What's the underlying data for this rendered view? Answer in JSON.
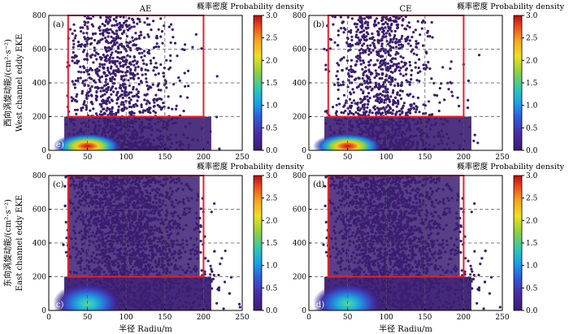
{
  "figure": {
    "ylabel_top": "西向涡旋动能/(cm²·s⁻²)",
    "ylabel_top_en": "West channel eddy EKE",
    "ylabel_bottom": "东向涡旋动能/(cm²·s⁻²)",
    "ylabel_bottom_en": "East channel eddy EKE",
    "xlabel": "半径 Radiu/m",
    "colorbar_title": "概率密度 Probability density",
    "colorbar_ticks": [
      "0.0",
      "0.5",
      "1.0",
      "1.5",
      "2.0",
      "2.5",
      "3.0"
    ],
    "colors": {
      "background": "#3b1d72",
      "point": "#3a1c6e",
      "box": "#e8202a",
      "grid": "#555555"
    }
  },
  "chart_data": [
    {
      "type": "scatter-density",
      "panel": "(a)",
      "corner_label": "(e)",
      "title": "AE",
      "channel": "West channel",
      "xlabel": "半径 Radiu/m",
      "ylabel": "西向涡旋动能/(cm²·s⁻²) West channel eddy EKE",
      "xlim": [
        0,
        250
      ],
      "ylim": [
        0,
        800
      ],
      "xticks": [
        0,
        50,
        100,
        150,
        200,
        250
      ],
      "yticks": [
        0,
        200,
        400,
        600,
        800
      ],
      "density_peak": {
        "x": 50,
        "y": 25,
        "value": 3.0
      },
      "highlight_box": {
        "x": [
          25,
          200
        ],
        "y": [
          200,
          800
        ]
      },
      "colorbar": {
        "label": "概率密度 Probability density",
        "range": [
          0,
          3.0
        ]
      }
    },
    {
      "type": "scatter-density",
      "panel": "(b)",
      "corner_label": "",
      "title": "CE",
      "channel": "West channel",
      "xlim": [
        0,
        250
      ],
      "ylim": [
        0,
        800
      ],
      "xticks": [
        0,
        50,
        100,
        150,
        200,
        250
      ],
      "yticks": [
        0,
        200,
        400,
        600,
        800
      ],
      "density_peak": {
        "x": 50,
        "y": 25,
        "value": 3.0
      },
      "highlight_box": {
        "x": [
          25,
          200
        ],
        "y": [
          200,
          800
        ]
      },
      "colorbar": {
        "label": "概率密度 Probability density",
        "range": [
          0,
          3.0
        ]
      }
    },
    {
      "type": "scatter-density",
      "panel": "(c)",
      "corner_label": "(c)",
      "title": "",
      "channel": "East channel",
      "xlabel": "半径 Radiu/m",
      "ylabel": "东向涡旋动能/(cm²·s⁻²) East channel eddy EKE",
      "xlim": [
        0,
        250
      ],
      "ylim": [
        0,
        800
      ],
      "xticks": [
        0,
        50,
        100,
        150,
        200,
        250
      ],
      "yticks": [
        0,
        200,
        400,
        600,
        800
      ],
      "density_peak": {
        "x": 50,
        "y": 40,
        "value": 1.2
      },
      "highlight_box": {
        "x": [
          25,
          200
        ],
        "y": [
          200,
          800
        ]
      },
      "colorbar": {
        "label": "概率密度 Probability density",
        "range": [
          0,
          3.0
        ]
      }
    },
    {
      "type": "scatter-density",
      "panel": "(d)",
      "corner_label": "(d)",
      "title": "",
      "channel": "East channel",
      "xlabel": "半径 Radiu/m",
      "xlim": [
        0,
        250
      ],
      "ylim": [
        0,
        800
      ],
      "xticks": [
        0,
        50,
        100,
        150,
        200,
        250
      ],
      "yticks": [
        0,
        200,
        400,
        600,
        800
      ],
      "density_peak": {
        "x": 50,
        "y": 40,
        "value": 1.2
      },
      "highlight_box": {
        "x": [
          25,
          200
        ],
        "y": [
          200,
          800
        ]
      },
      "colorbar": {
        "label": "概率密度 Probability density",
        "range": [
          0,
          3.0
        ]
      }
    }
  ]
}
